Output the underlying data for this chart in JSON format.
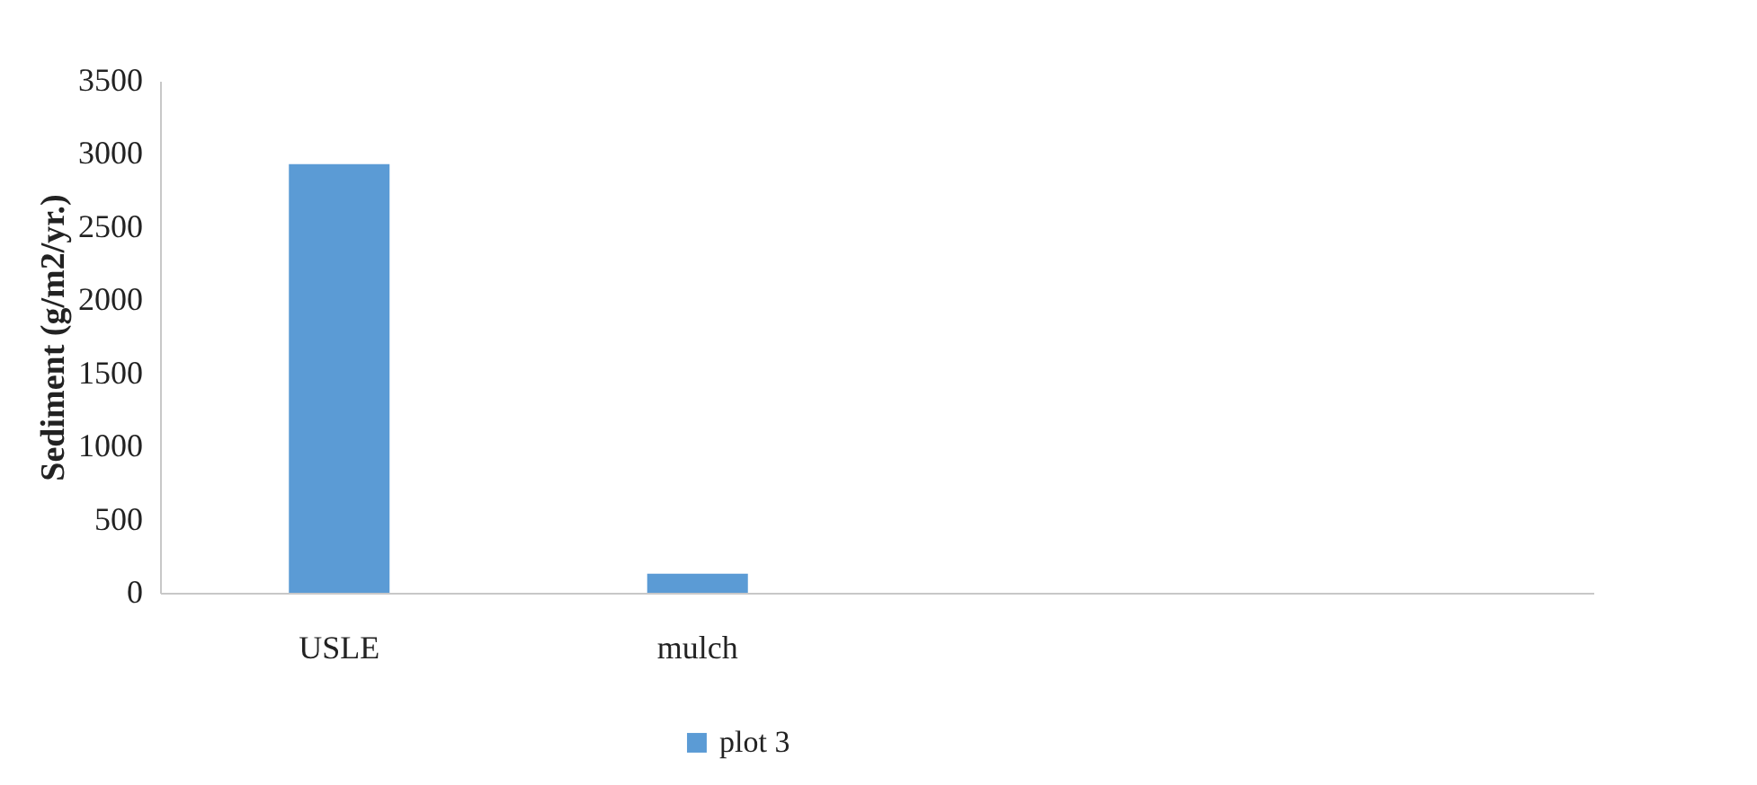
{
  "chart_data": {
    "type": "bar",
    "ylabel": "Sediment (g/m2/yr.)",
    "categories": [
      "USLE",
      "mulch",
      null,
      null
    ],
    "series": [
      {
        "name": "plot 3",
        "color": "#5b9bd5",
        "values": [
          2930,
          130,
          null,
          null
        ]
      }
    ],
    "ylim": [
      0,
      3500
    ],
    "yticks": [
      0,
      500,
      1000,
      1500,
      2000,
      2500,
      3000,
      3500
    ],
    "grid": false,
    "legend": "bottom"
  }
}
